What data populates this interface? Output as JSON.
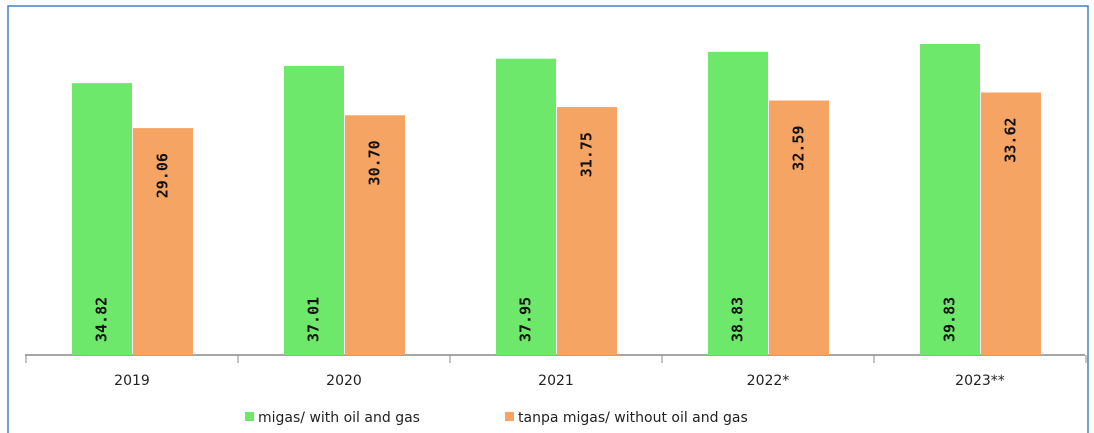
{
  "chart_data": {
    "type": "bar",
    "categories": [
      "2019",
      "2020",
      "2021",
      "2022*",
      "2023**"
    ],
    "series": [
      {
        "name": "migas/ with oil and gas",
        "color": "#6ee86a",
        "values": [
          34.82,
          37.01,
          37.95,
          38.83,
          39.83
        ]
      },
      {
        "name": "tanpa migas/ without oil and gas",
        "color": "#f5a463",
        "values": [
          29.06,
          30.7,
          31.75,
          32.59,
          33.62
        ]
      }
    ],
    "value_labels": [
      [
        "34.82",
        "37.01",
        "37.95",
        "38.83",
        "39.83"
      ],
      [
        "29.06",
        "30.70",
        "31.75",
        "32.59",
        "33.62"
      ]
    ]
  }
}
